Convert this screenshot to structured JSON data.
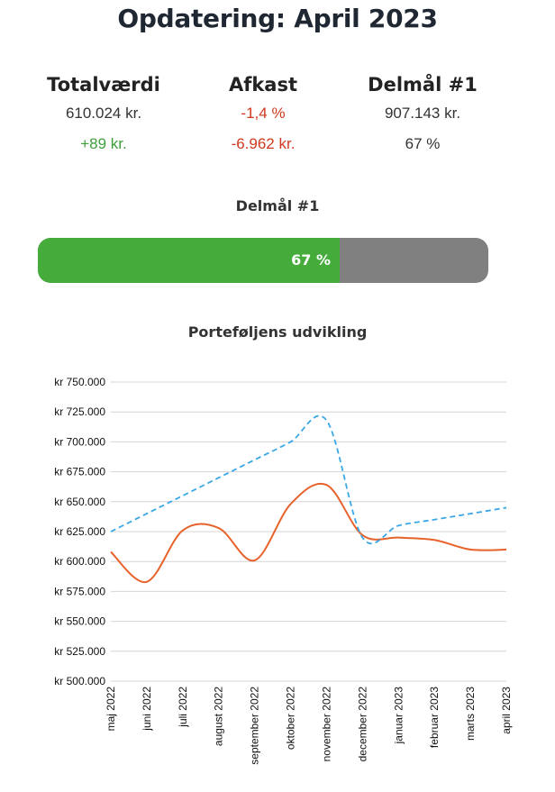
{
  "title": "Opdatering: April 2023",
  "stats": [
    {
      "heading": "Totalværdi",
      "value1": "610.024 kr.",
      "value2": "+89 kr."
    },
    {
      "heading": "Afkast",
      "value1": "-1,4 %",
      "value2": "-6.962 kr."
    },
    {
      "heading": "Delmål #1",
      "value1": "907.143 kr.",
      "value2": "67 %"
    }
  ],
  "colors": {
    "positive": "#3e9e3a",
    "negative": "#d0391e",
    "progress_fill": "#45ac3c",
    "progress_track": "#808080"
  },
  "goal": {
    "heading": "Delmål #1",
    "progress_percent": 67,
    "label": "67 %"
  },
  "chart_data": {
    "type": "line",
    "title": "Porteføljens udvikling",
    "categories": [
      "maj 2022",
      "juni 2022",
      "juli 2022",
      "august 2022",
      "september 2022",
      "oktober 2022",
      "november 2022",
      "december 2022",
      "januar 2023",
      "februar 2023",
      "marts 2023",
      "april 2023"
    ],
    "ylim": [
      500000,
      750000
    ],
    "yticks": [
      "kr 500.000",
      "kr 525.000",
      "kr 550.000",
      "kr 575.000",
      "kr 600.000",
      "kr 625.000",
      "kr 650.000",
      "kr 675.000",
      "kr 700.000",
      "kr 725.000",
      "kr 750.000"
    ],
    "grid": true,
    "series": [
      {
        "style": "solid",
        "color": "#e8622c",
        "values": [
          608000,
          583000,
          626000,
          628000,
          601000,
          648000,
          664000,
          622000,
          620000,
          618000,
          610000,
          610000
        ]
      },
      {
        "style": "dashed",
        "color": "#3aa7e6",
        "values": [
          625000,
          640000,
          655000,
          670000,
          685000,
          700000,
          718000,
          620000,
          630000,
          635000,
          640000,
          645000
        ]
      }
    ]
  }
}
